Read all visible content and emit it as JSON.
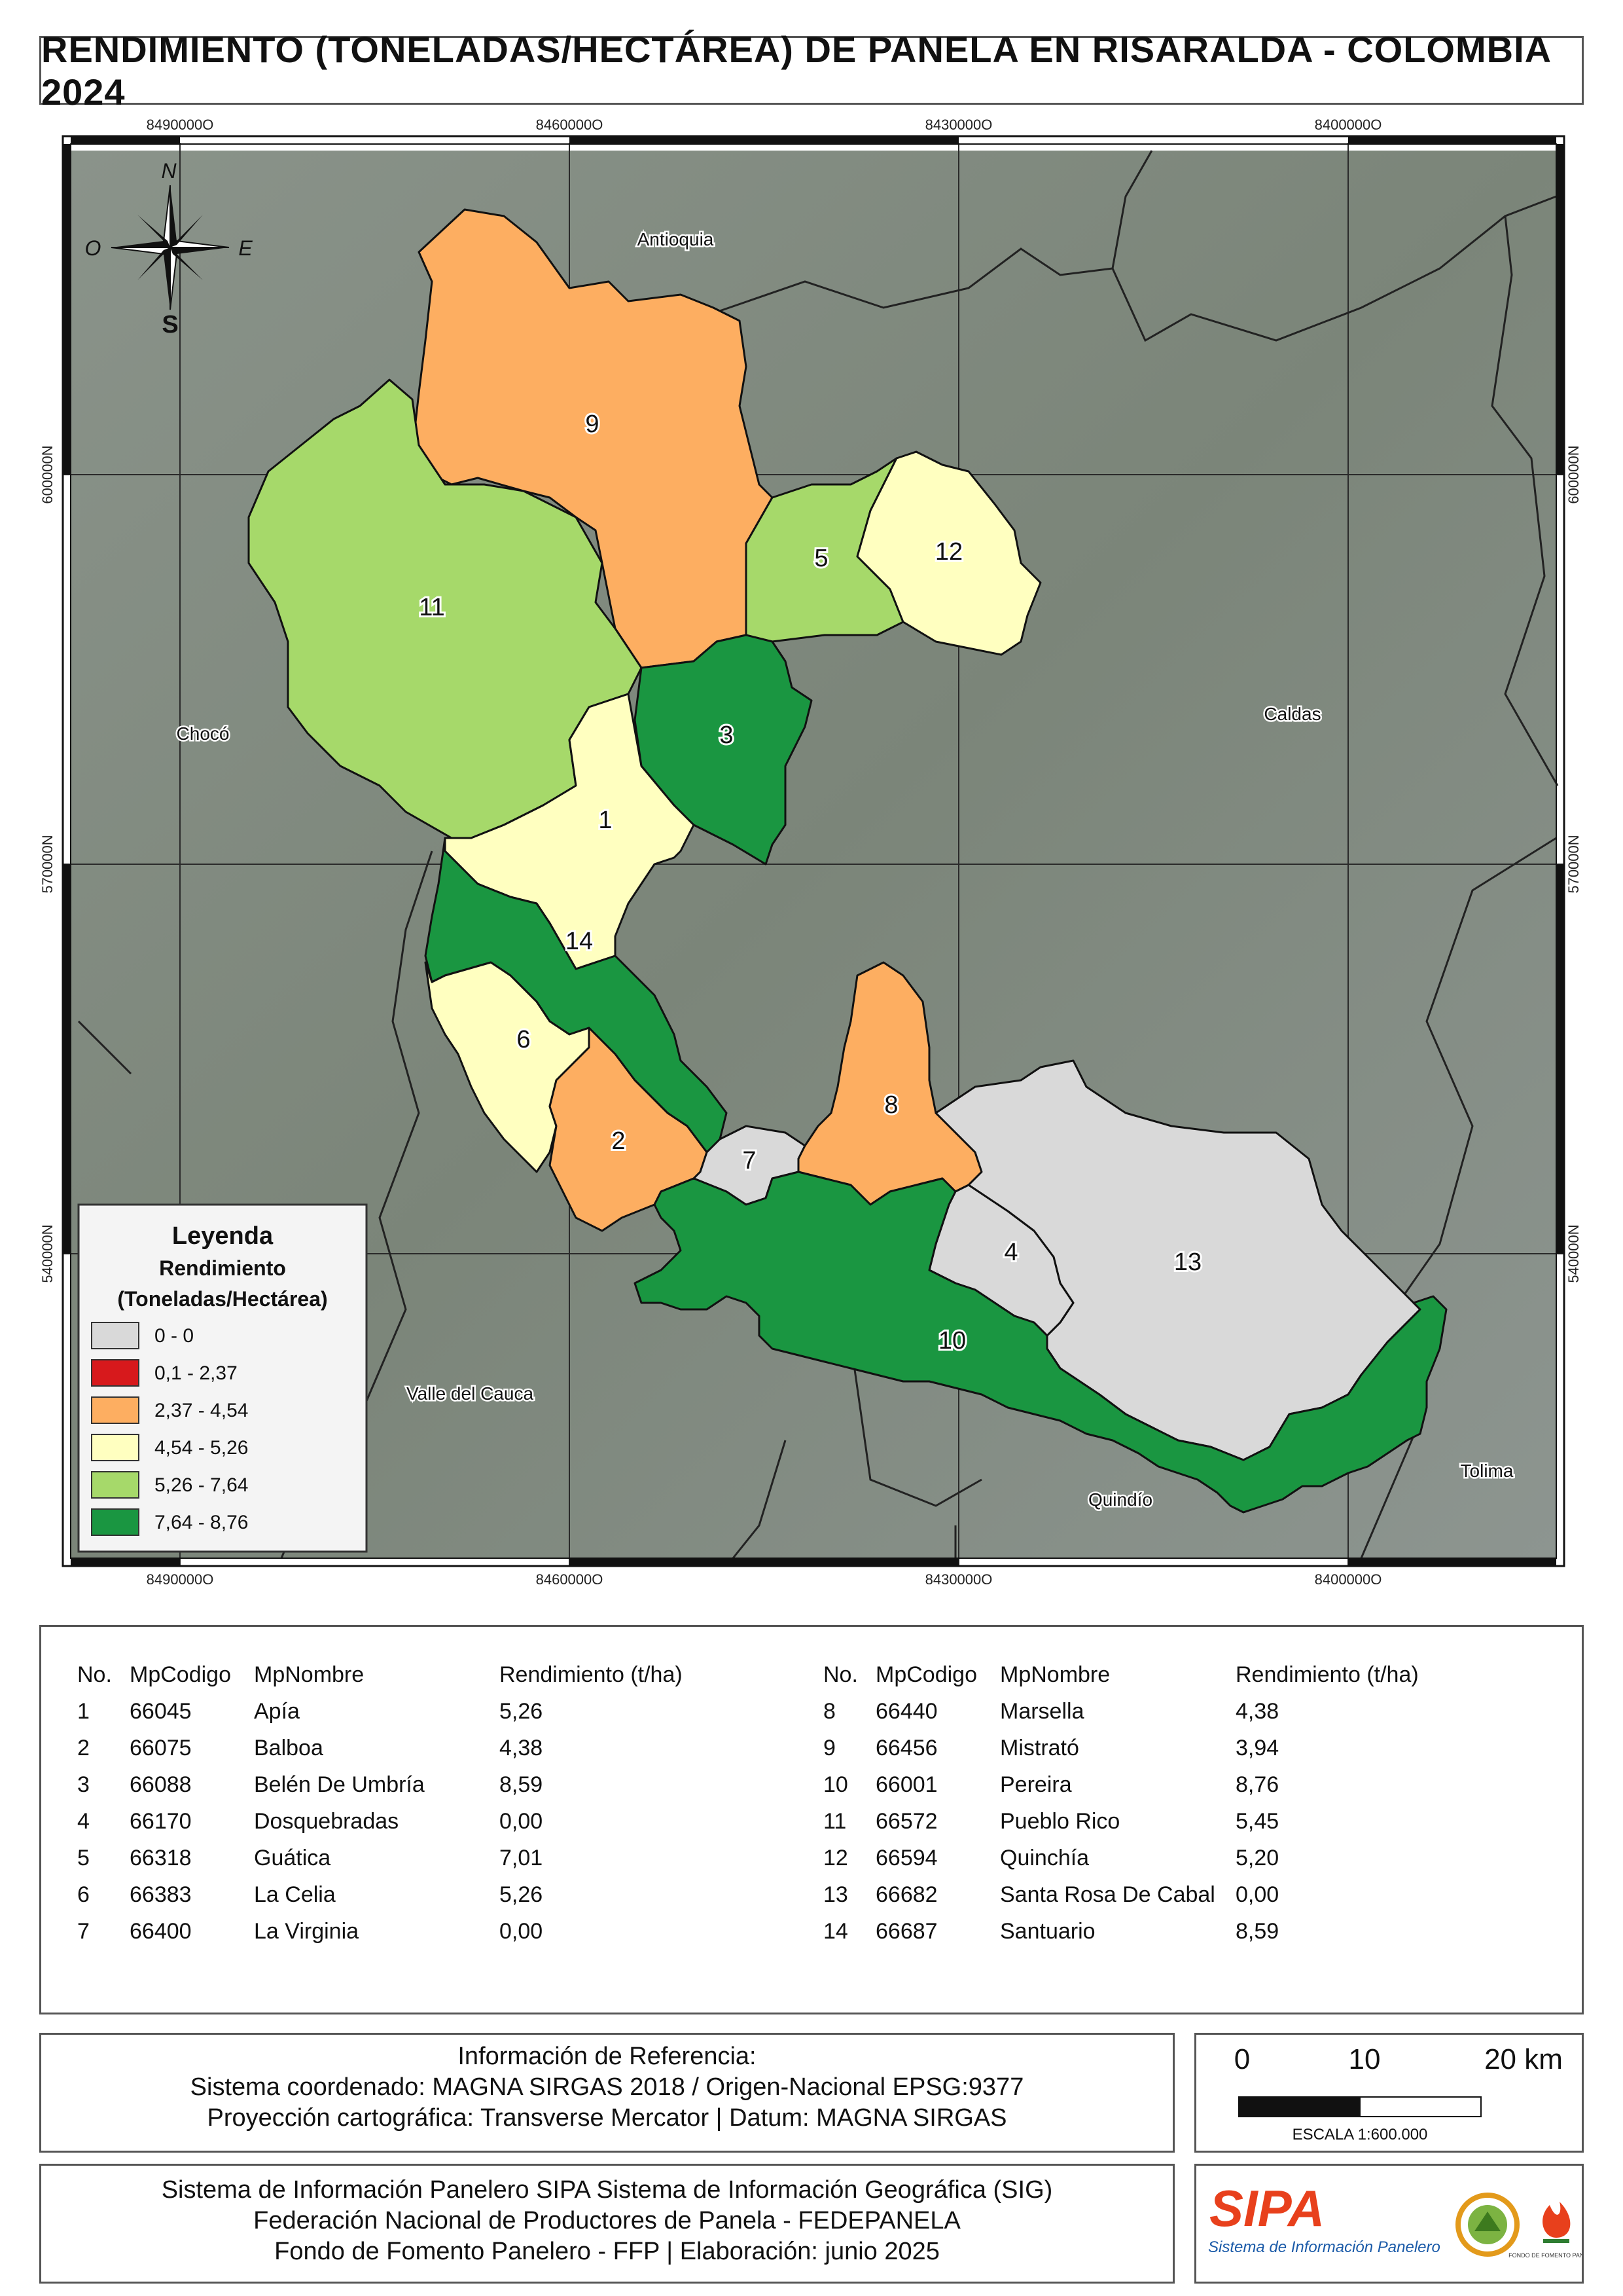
{
  "title": "RENDIMIENTO (TONELADAS/HECTÁREA) DE PANELA EN RISARALDA - COLOMBIA 2024",
  "coords": {
    "top_x": [
      "8490000O",
      "8460000O",
      "8430000O",
      "8400000O"
    ],
    "bottom_x": [
      "8490000O",
      "8460000O",
      "8430000O",
      "8400000O"
    ],
    "left_y": [
      "600000N",
      "570000N",
      "540000N"
    ],
    "right_y": [
      "600000N",
      "570000N",
      "540000N"
    ]
  },
  "compass": {
    "n": "N",
    "s": "S",
    "e": "E",
    "o": "O"
  },
  "regions": {
    "antioquia": "Antioquia",
    "choco": "Chocó",
    "caldas": "Caldas",
    "valle": "Valle del Cauca",
    "quindio": "Quindío",
    "tolima": "Tolima"
  },
  "municipality_labels": [
    "1",
    "2",
    "3",
    "4",
    "5",
    "6",
    "7",
    "8",
    "9",
    "10",
    "11",
    "12",
    "13",
    "14"
  ],
  "legend": {
    "title": "Leyenda",
    "subtitle1": "Rendimiento",
    "subtitle2": "(Toneladas/Hectárea)",
    "classes": [
      {
        "label": "0 - 0",
        "color": "#d9d9d9"
      },
      {
        "label": "0,1 - 2,37",
        "color": "#d7191c"
      },
      {
        "label": "2,37 - 4,54",
        "color": "#fdae61"
      },
      {
        "label": "4,54 - 5,26",
        "color": "#ffffc0"
      },
      {
        "label": "5,26 - 7,64",
        "color": "#a6d96a"
      },
      {
        "label": "7,64 - 8,76",
        "color": "#1a9641"
      }
    ]
  },
  "table": {
    "headers": [
      "No.",
      "MpCodigo",
      "MpNombre",
      "Rendimiento (t/ha)"
    ],
    "left": [
      [
        "1",
        "66045",
        "Apía",
        "5,26"
      ],
      [
        "2",
        "66075",
        "Balboa",
        "4,38"
      ],
      [
        "3",
        "66088",
        "Belén De Umbría",
        "8,59"
      ],
      [
        "4",
        "66170",
        "Dosquebradas",
        "0,00"
      ],
      [
        "5",
        "66318",
        "Guática",
        "7,01"
      ],
      [
        "6",
        "66383",
        "La Celia",
        "5,26"
      ],
      [
        "7",
        "66400",
        "La Virginia",
        "0,00"
      ]
    ],
    "right": [
      [
        "8",
        "66440",
        "Marsella",
        "4,38"
      ],
      [
        "9",
        "66456",
        "Mistrató",
        "3,94"
      ],
      [
        "10",
        "66001",
        "Pereira",
        "8,76"
      ],
      [
        "11",
        "66572",
        "Pueblo Rico",
        "5,45"
      ],
      [
        "12",
        "66594",
        "Quinchía",
        "5,20"
      ],
      [
        "13",
        "66682",
        "Santa Rosa De Cabal",
        "0,00"
      ],
      [
        "14",
        "66687",
        "Santuario",
        "8,59"
      ]
    ]
  },
  "reference": {
    "line1": "Información de Referencia:",
    "line2": "Sistema coordenado: MAGNA SIRGAS 2018 / Origen-Nacional EPSG:9377",
    "line3": "Proyección cartográfica: Transverse Mercator | Datum: MAGNA SIRGAS"
  },
  "scale": {
    "t0": "0",
    "t10": "10",
    "t20": "20 km",
    "text": "ESCALA 1:600.000"
  },
  "footer": {
    "line1": "Sistema de Información Panelero SIPA  Sistema de Información Geográfica (SIG)",
    "line2": "Federación Nacional de Productores de Panela - FEDEPANELA",
    "line3": "Fondo de Fomento Panelero - FFP |  Elaboración: junio 2025"
  },
  "logos": {
    "sipa": "SIPA",
    "sipa_sub": "Sistema de Información Panelero",
    "ffp": "FONDO DE FOMENTO PANELERO"
  },
  "colors": {
    "zero": "#d9d9d9",
    "low": "#d7191c",
    "mid_orange": "#fdae61",
    "mid_yellow": "#ffffc0",
    "light_green": "#a6d96a",
    "dark_green": "#1a9641",
    "background_map": "#7d867c",
    "sipa_red": "#e8401c"
  }
}
